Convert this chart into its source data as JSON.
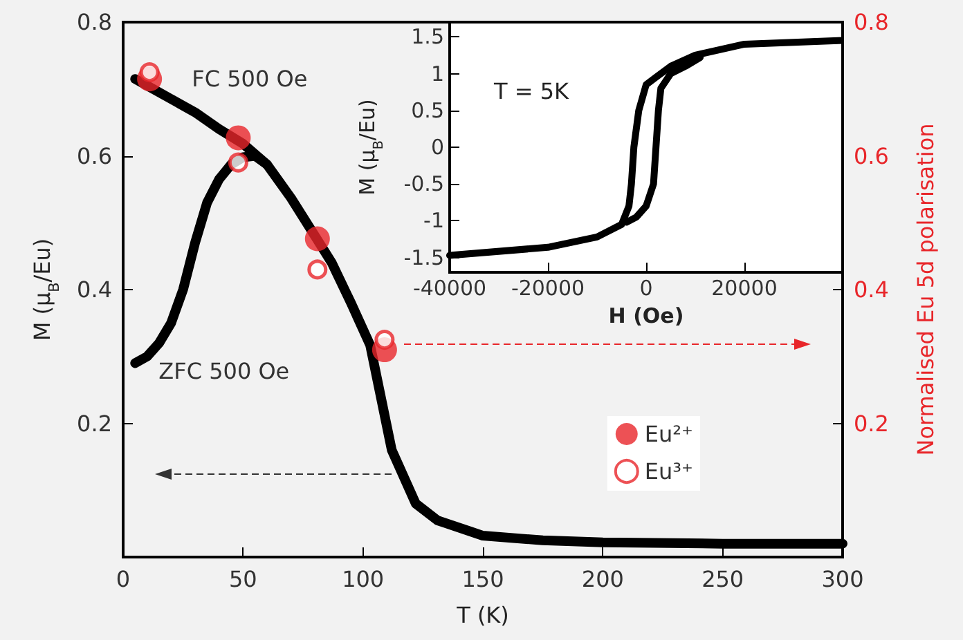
{
  "chart_data": [
    {
      "type": "line",
      "xlabel": "T (K)",
      "ylabel": "M (μ$_{B}$/Eu)",
      "y2label": "Normalised Eu 5d polarisation",
      "xlim": [
        0,
        300
      ],
      "xticks": [
        0,
        50,
        100,
        150,
        200,
        250,
        300
      ],
      "ylim": [
        0,
        0.8
      ],
      "yticks": [
        0.2,
        0.4,
        0.6,
        0.8
      ],
      "y2lim": [
        0,
        0.8
      ],
      "y2ticks": [
        0.2,
        0.4,
        0.6,
        0.8
      ],
      "grid": false,
      "legend": "bottom right",
      "line_style": "solid",
      "series": [
        {
          "name": "FC 500 Oe",
          "color": "#000000",
          "marker": "none",
          "x": [
            5,
            10,
            20,
            30,
            40,
            50,
            60,
            70,
            80,
            87,
            95,
            103,
            112,
            122,
            131,
            150,
            175,
            200,
            250,
            300
          ],
          "values": [
            0.715,
            0.705,
            0.685,
            0.665,
            0.64,
            0.618,
            0.587,
            0.537,
            0.48,
            0.44,
            0.38,
            0.317,
            0.16,
            0.08,
            0.055,
            0.032,
            0.025,
            0.022,
            0.02,
            0.02
          ]
        },
        {
          "name": "ZFC 500 Oe",
          "color": "#000000",
          "marker": "none",
          "x": [
            5,
            10,
            15,
            20,
            25,
            30,
            35,
            40,
            45,
            50,
            55,
            60
          ],
          "values": [
            0.29,
            0.3,
            0.32,
            0.35,
            0.4,
            0.47,
            0.53,
            0.565,
            0.587,
            0.598,
            0.6,
            0.587
          ]
        },
        {
          "type": "scatter",
          "name": "Eu²⁺",
          "color": "#e8262a",
          "marker": "circle",
          "axis": "y2",
          "x": [
            11,
            48,
            81,
            109
          ],
          "values": [
            0.715,
            0.627,
            0.476,
            0.31
          ]
        },
        {
          "type": "scatter",
          "name": "Eu³⁺",
          "color": "#e8262a",
          "marker": "circle",
          "axis": "y2",
          "x": [
            11,
            48,
            81,
            109
          ],
          "values": [
            0.725,
            0.59,
            0.43,
            0.325
          ]
        }
      ]
    },
    {
      "type": "line",
      "xlabel": "H (Oe)",
      "ylabel": "M (μ$_{B}$/Eu)",
      "xlim": [
        -40000,
        40000
      ],
      "xticks": [
        -40000,
        -20000,
        0,
        20000
      ],
      "ylim": [
        -1.7,
        1.7
      ],
      "yticks": [
        -1.5,
        -1,
        -0.5,
        0,
        0.5,
        1,
        1.5
      ],
      "grid": false,
      "legend": false,
      "annotations": [
        "T = 5K"
      ],
      "series": [
        {
          "color": "#000000",
          "marker": "none",
          "x": [
            -40000,
            -20000,
            -10000,
            -5000,
            -3500,
            -3000,
            -2500,
            -1500,
            0,
            2000,
            5000,
            10000,
            20000,
            40000
          ],
          "values": [
            -1.47,
            -1.36,
            -1.22,
            -1.05,
            -0.8,
            -0.5,
            0,
            0.5,
            0.85,
            0.95,
            1.1,
            1.25,
            1.4,
            1.45
          ]
        },
        {
          "color": "#000000",
          "marker": "none",
          "x": [
            -4000,
            -2000,
            0,
            1500,
            2000,
            2500,
            3000,
            5000,
            8000,
            11000
          ],
          "values": [
            -1.02,
            -0.95,
            -0.8,
            -0.5,
            0,
            0.5,
            0.8,
            1.0,
            1.1,
            1.22
          ]
        }
      ]
    }
  ]
}
